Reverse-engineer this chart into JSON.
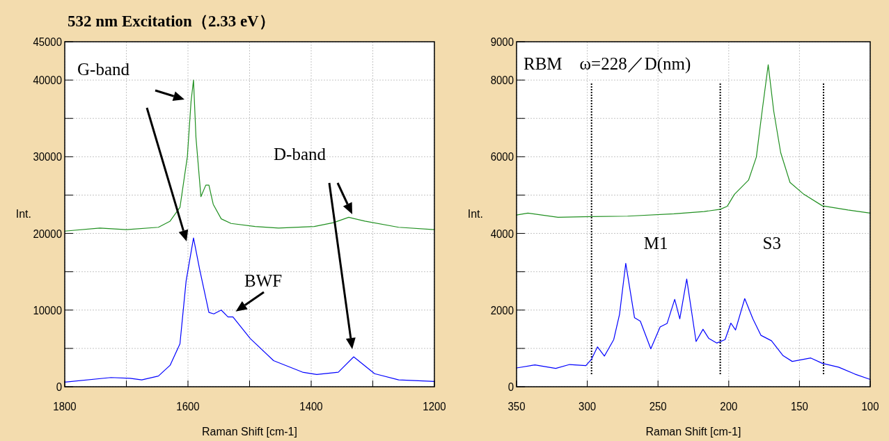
{
  "chart_data": [
    {
      "type": "line",
      "title": "532 nm Excitation（2.33 eV）",
      "xlabel": "Raman Shift [cm-1]",
      "ylabel": "Int.",
      "xlim": [
        1800,
        1200
      ],
      "xticks": [
        1800,
        {
          "value": 1700,
          "label": null
        },
        1600,
        {
          "value": 1500,
          "label": null
        },
        1400,
        {
          "value": 1300,
          "label": null
        },
        1200
      ],
      "ylim": [
        0,
        45000
      ],
      "yticks": [
        0,
        {
          "value": 5000,
          "label": null
        },
        10000,
        {
          "value": 15000,
          "label": null
        },
        20000,
        {
          "value": 25000,
          "label": null
        },
        30000,
        {
          "value": 35000,
          "label": null
        },
        40000,
        45000
      ],
      "grid": true,
      "series": [
        {
          "color": "#1f8f1f",
          "x": [
            1800,
            1743,
            1700,
            1648,
            1629,
            1613,
            1601,
            1595,
            1591,
            1587,
            1579,
            1571,
            1566,
            1559,
            1546,
            1530,
            1491,
            1453,
            1395,
            1364,
            1339,
            1313,
            1258,
            1200
          ],
          "values": [
            20300,
            20700,
            20500,
            20800,
            21600,
            23400,
            30000,
            37200,
            40000,
            32500,
            24800,
            26300,
            26300,
            23800,
            21900,
            21300,
            20900,
            20700,
            20900,
            21400,
            22100,
            21600,
            20800,
            20500
          ]
        },
        {
          "color": "#0000ff",
          "x": [
            1800,
            1725,
            1694,
            1675,
            1648,
            1629,
            1613,
            1603,
            1591,
            1581,
            1566,
            1558,
            1546,
            1535,
            1527,
            1499,
            1461,
            1414,
            1391,
            1356,
            1331,
            1297,
            1258,
            1200
          ],
          "values": [
            600,
            1200,
            1100,
            900,
            1400,
            2800,
            5600,
            13800,
            19400,
            15300,
            9700,
            9500,
            10000,
            9100,
            9100,
            6300,
            3400,
            1900,
            1600,
            1900,
            3900,
            1700,
            900,
            700
          ]
        }
      ],
      "annotations": [
        "G-band",
        "D-band",
        {
          "text": "BWF",
          "x": 1527,
          "y": 9100
        }
      ]
    },
    {
      "type": "line",
      "xlabel": "Raman Shift [cm-1]",
      "ylabel": "Int.",
      "xlim": [
        350,
        100
      ],
      "xticks": [
        350,
        300,
        250,
        200,
        150,
        100
      ],
      "ylim": [
        0,
        9000
      ],
      "yticks": [
        0,
        {
          "value": 1000,
          "label": null
        },
        2000,
        {
          "value": 3000,
          "label": null
        },
        4000,
        {
          "value": 5000,
          "label": null
        },
        6000,
        {
          "value": 7000,
          "label": null
        },
        8000,
        9000
      ],
      "grid": true,
      "series": [
        {
          "color": "#1f8f1f",
          "x": [
            350,
            342,
            320.7,
            297,
            271.5,
            238.7,
            217.4,
            206,
            201,
            196,
            186,
            180.5,
            176.4,
            172.1,
            168.2,
            163.3,
            156.7,
            146.9,
            133.8,
            115.7,
            100
          ],
          "values": [
            4480,
            4530,
            4420,
            4440,
            4450,
            4510,
            4570,
            4630,
            4710,
            5020,
            5390,
            5990,
            7190,
            8400,
            7190,
            6110,
            5330,
            5020,
            4720,
            4610,
            4530
          ]
        },
        {
          "color": "#0000ff",
          "x": [
            350,
            337,
            322.3,
            312.5,
            301,
            297,
            292.8,
            287.9,
            281.3,
            277.2,
            272.8,
            266.6,
            262.5,
            255.1,
            248.5,
            243.6,
            238.2,
            234.6,
            229.7,
            223.1,
            218.2,
            214.1,
            208.4,
            202.6,
            198.5,
            195.2,
            188.7,
            182.9,
            177.2,
            169.8,
            161.6,
            155.1,
            142,
            133.8,
            122.3,
            110.8,
            100
          ],
          "values": [
            490,
            570,
            480,
            580,
            550,
            720,
            1040,
            800,
            1230,
            1890,
            3220,
            1800,
            1710,
            990,
            1560,
            1650,
            2280,
            1770,
            2810,
            1180,
            1500,
            1260,
            1140,
            1230,
            1660,
            1480,
            2300,
            1770,
            1340,
            1200,
            810,
            660,
            750,
            610,
            510,
            330,
            190
          ]
        }
      ],
      "ref_lines": [
        {
          "axis": "x",
          "value": 297,
          "color": "#000000",
          "line_style": "dotted"
        },
        {
          "axis": "x",
          "value": 206,
          "color": "#000000",
          "line_style": "dotted"
        },
        {
          "axis": "x",
          "value": 133,
          "color": "#000000",
          "line_style": "dotted"
        }
      ],
      "annotations": [
        "RBM　ω=228／D(nm)",
        "M1",
        "S3"
      ]
    }
  ]
}
